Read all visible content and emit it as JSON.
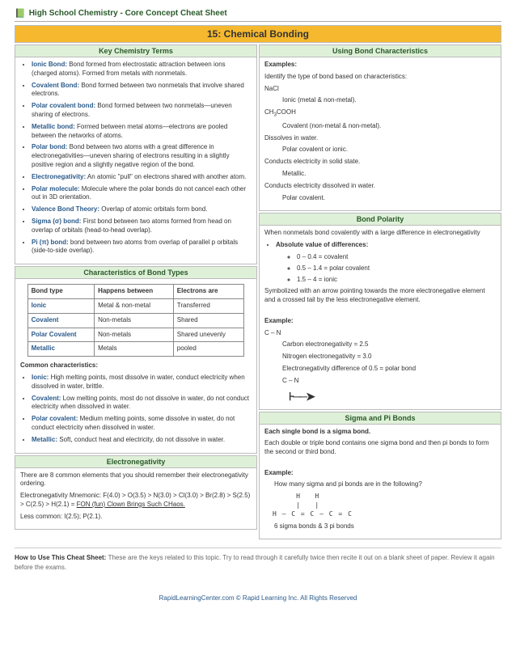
{
  "header": {
    "icon": "📗",
    "text": "High School Chemistry - Core Concept Cheat Sheet"
  },
  "title": "15: Chemical Bonding",
  "keyTerms": {
    "heading": "Key Chemistry Terms",
    "items": [
      {
        "term": "Ionic Bond:",
        "def": " Bond formed from electrostatic attraction between ions (charged atoms).  Formed from metals with nonmetals."
      },
      {
        "term": "Covalent Bond:",
        "def": " Bond formed between two nonmetals that involve shared electrons."
      },
      {
        "term": "Polar covalent bond:",
        "def": " Bond formed between two nonmetals—uneven sharing of electrons."
      },
      {
        "term": "Metallic bond:",
        "def": " Formed between metal atoms—electrons are pooled between the networks of atoms."
      },
      {
        "term": "Polar bond:",
        "def": " Bond between two atoms with a great difference in electronegativities—uneven sharing of electrons resulting in a slightly positive region and a slightly negative region of the bond."
      },
      {
        "term": "Electronegativity:",
        "def": " An atomic \"pull\" on electrons shared with another atom."
      },
      {
        "term": "Polar molecule:",
        "def": " Molecule where the polar bonds do not cancel each other out in 3D orientation."
      },
      {
        "term": "Valence Bond Theory:",
        "def": " Overlap of atomic orbitals form bond."
      },
      {
        "term": "Sigma (σ) bond:",
        "def": " First bond between two atoms formed from head on overlap of orbitals (head-to-head overlap)."
      },
      {
        "term": "Pi (π) bond:",
        "def": " bond between two atoms from overlap of parallel p orbitals (side-to-side overlap)."
      }
    ]
  },
  "bondTypes": {
    "heading": "Characteristics of Bond Types",
    "columns": [
      "Bond type",
      "Happens between",
      "Electrons are"
    ],
    "rows": [
      [
        "Ionic",
        "Metal & non-metal",
        "Transferred"
      ],
      [
        "Covalent",
        "Non-metals",
        "Shared"
      ],
      [
        "Polar Covalent",
        "Non-metals",
        "Shared unevenly"
      ],
      [
        "Metallic",
        "Metals",
        "pooled"
      ]
    ],
    "commonHeading": "Common characteristics:",
    "common": [
      {
        "term": "Ionic:",
        "def": " High melting points, most dissolve in water, conduct electricity when dissolved in water, brittle."
      },
      {
        "term": "Covalent:",
        "def": " Low melting points, most do not dissolve in water, do not conduct electricity when dissolved in water."
      },
      {
        "term": "Polar covalent:",
        "def": " Medium melting points, some dissolve in water, do not conduct electricity when dissolved in water."
      },
      {
        "term": "Metallic:",
        "def": " Soft, conduct heat and electricity, do not dissolve in water."
      }
    ]
  },
  "electroneg": {
    "heading": "Electronegativity",
    "p1": "There are 8 common elements that you should remember their electronegativity ordering.",
    "p2a": "Electronegativity Mnemonic: F(4.0) > O(3.5) > N(3.0) > Cl(3.0) > Br(2.8) > S(2.5) > C(2.5) > H(2.1) = ",
    "p2b": "FON (fun) Clown Brings Such CHaos.",
    "p3": "Less common: I(2.5); P(2.1)."
  },
  "using": {
    "heading": "Using Bond Characteristics",
    "exHead": "Examples:",
    "intro": "Identify the type of bond based on characteristics:",
    "lines": [
      {
        "l": "NaCl",
        "i": 0
      },
      {
        "l": "Ionic (metal & non-metal).",
        "i": 1
      },
      {
        "l": "CH3COOH",
        "i": 0,
        "sub": true
      },
      {
        "l": "Covalent (non-metal & non-metal).",
        "i": 1
      },
      {
        "l": "Dissolves in water.",
        "i": 0
      },
      {
        "l": "Polar covalent or ionic.",
        "i": 1
      },
      {
        "l": "Conducts electricity in solid state.",
        "i": 0
      },
      {
        "l": "Metallic.",
        "i": 1
      },
      {
        "l": "Conducts electricity dissolved in water.",
        "i": 0
      },
      {
        "l": "Polar covalent.",
        "i": 1
      }
    ]
  },
  "polarity": {
    "heading": "Bond Polarity",
    "intro": "When nonmetals bond covalently with a large difference in electronegativity",
    "absHead": "Absolute value of differences:",
    "ranges": [
      "0 – 0.4 = covalent",
      "0.5 – 1.4 = polar covalent",
      "1.5 – 4 = ionic"
    ],
    "sym": "Symbolized with an arrow pointing towards the more electronegative element and a crossed tail by the less electronegative element.",
    "exHead": "Example:",
    "ex1": "C – N",
    "ex2": "Carbon electronegativity = 2.5",
    "ex3": "Nitrogen electronegativity = 3.0",
    "ex4": "Electronegativity difference of 0.5 = polar bond",
    "ex5": "C – N",
    "arrow": "⊦──➤"
  },
  "sigma": {
    "heading": "Sigma and Pi Bonds",
    "l1": "Each single bond is a sigma bond.",
    "l2": "Each double or triple bond contains one sigma bond and then pi bonds to form the second or third bond.",
    "exHead": "Example:",
    "q": "How many sigma and pi bonds are in the following?",
    "struct1": "     H   H",
    "struct2": "     |   |",
    "struct3": "H – C = C – C = C",
    "ans": "6 sigma bonds & 3 pi bonds"
  },
  "footer": {
    "head": "How to Use This Cheat Sheet: ",
    "body": "These are the keys related to this topic. Try to read through it carefully twice then recite it out on a blank sheet of paper. Review it again before the exams.",
    "copy": "RapidLearningCenter.com    © Rapid Learning Inc. All Rights Reserved"
  }
}
